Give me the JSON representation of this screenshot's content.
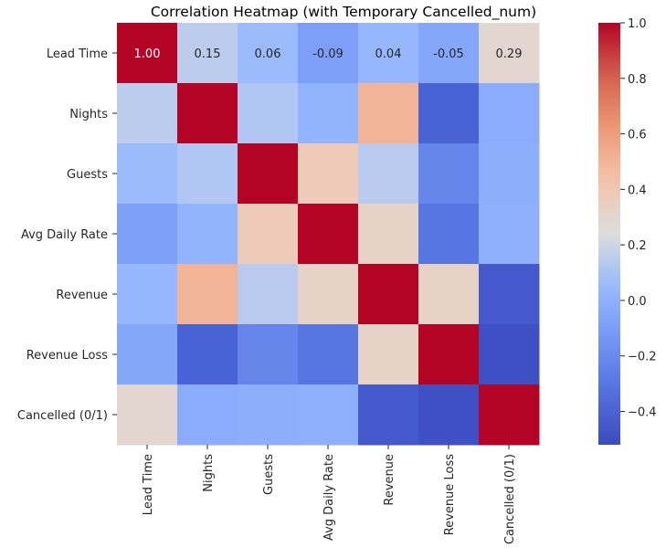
{
  "chart_data": {
    "type": "heatmap",
    "title": "Correlation Heatmap (with Temporary Cancelled_num)",
    "rows": [
      "Lead Time",
      "Nights",
      "Guests",
      "Avg Daily Rate",
      "Revenue",
      "Revenue Loss",
      "Cancelled (0/1)"
    ],
    "columns": [
      "Lead Time",
      "Nights",
      "Guests",
      "Avg Daily Rate",
      "Revenue",
      "Revenue Loss",
      "Cancelled (0/1)"
    ],
    "values": [
      [
        1.0,
        0.15,
        0.06,
        -0.09,
        0.04,
        -0.05,
        0.29
      ],
      [
        0.15,
        1.0,
        0.12,
        0.02,
        0.5,
        -0.4,
        -0.02
      ],
      [
        0.06,
        0.12,
        1.0,
        0.38,
        0.14,
        -0.22,
        -0.01
      ],
      [
        -0.09,
        0.02,
        0.38,
        1.0,
        0.32,
        -0.3,
        0.0
      ],
      [
        0.04,
        0.5,
        0.14,
        0.32,
        1.0,
        0.32,
        -0.45
      ],
      [
        -0.05,
        -0.4,
        -0.22,
        -0.3,
        0.32,
        1.0,
        -0.5
      ],
      [
        0.29,
        -0.02,
        -0.01,
        0.0,
        -0.45,
        -0.5,
        1.0
      ]
    ],
    "annotated_row": 0,
    "colormap": "coolwarm",
    "vmin": -0.52,
    "vmax": 1.0,
    "colorbar_ticks": [
      "1.0",
      "0.8",
      "0.6",
      "0.4",
      "0.2",
      "0.0",
      "−0.2",
      "−0.4"
    ],
    "colorbar_tick_values": [
      1.0,
      0.8,
      0.6,
      0.4,
      0.2,
      0.0,
      -0.2,
      -0.4
    ]
  }
}
